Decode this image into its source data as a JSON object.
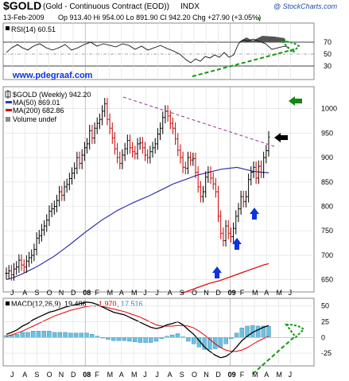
{
  "header": {
    "symbol": "$GOLD",
    "name": "(Gold - Continuous Contract (EOD))",
    "exchange": "INDX",
    "copyright": "@ StockCharts.com",
    "date": "13-Feb-2009",
    "quote": "Op 913.40  Hi 954.00  Lo 891.90  Cl 942.20  Chg +27.90 (+3.05%)",
    "change_arrow": "▲"
  },
  "watermark": "www.pdegraaf.com",
  "rsi_panel": {
    "label": "RSI(14) 60.51",
    "ticks": [
      "70",
      "50",
      "30"
    ]
  },
  "price_panel": {
    "legend_title": "$GOLD (Weekly) 942.20",
    "ma50_label": "MA(50) 869.01",
    "ma200_label": "MA(200) 682.86",
    "volume_label": "Volume undef",
    "ticks": [
      "1000",
      "950",
      "900",
      "850",
      "800",
      "750",
      "700",
      "650"
    ],
    "colors": {
      "ma50": "#3333aa",
      "ma200": "#e00000",
      "price_bar": "#000000",
      "trendline": "#993399",
      "arrow_green": "#118811",
      "arrow_blue": "#1133dd",
      "arrow_black": "#000000"
    }
  },
  "macd_panel": {
    "label": "MACD(12,26,9)",
    "macd_value": "19.486",
    "signal_value": "1.970",
    "hist_value": "17.516",
    "ticks": [
      "50",
      "25",
      "0",
      "-25"
    ]
  },
  "x_axis": {
    "labels": [
      "J",
      "A",
      "S",
      "O",
      "N",
      "D",
      "08",
      "F",
      "M",
      "A",
      "M",
      "J",
      "J",
      "A",
      "S",
      "O",
      "N",
      "D",
      "09",
      "F",
      "M",
      "A",
      "M",
      "J"
    ]
  },
  "chart_data": {
    "type": "line",
    "title": "$GOLD (Gold - Continuous Contract (EOD)) INDX",
    "ylim": [
      625,
      1045
    ],
    "series": [
      {
        "name": "$GOLD (Weekly)",
        "values": [
          663,
          668,
          660,
          672,
          676,
          690,
          680,
          676,
          688,
          695,
          700,
          712,
          735,
          740,
          752,
          760,
          772,
          790,
          795,
          800,
          812,
          830,
          823,
          840,
          845,
          857,
          868,
          878,
          900,
          888,
          905,
          920,
          928,
          955,
          940,
          960,
          970,
          978,
          995,
          1010,
          978,
          960,
          940,
          918,
          900,
          888,
          905,
          918,
          935,
          920,
          912,
          908,
          928,
          930,
          920,
          905,
          900,
          912,
          920,
          928,
          948,
          960,
          982,
          995,
          985,
          970,
          960,
          938,
          915,
          900,
          880,
          878,
          900,
          895,
          898,
          870,
          840,
          820,
          830,
          860,
          870,
          858,
          846,
          830,
          780,
          745,
          730,
          760,
          745,
          738,
          755,
          780,
          795,
          820,
          810,
          820,
          855,
          870,
          880,
          858,
          882,
          870,
          900,
          914,
          942
        ]
      },
      {
        "name": "MA(50)",
        "values": [
          650,
          655,
          662,
          670,
          678,
          688,
          698,
          710,
          722,
          735,
          748,
          760,
          772,
          782,
          792,
          800,
          808,
          815,
          822,
          830,
          838,
          846,
          852,
          858,
          864,
          868,
          872,
          876,
          878,
          880,
          876,
          872,
          870,
          869
        ]
      },
      {
        "name": "MA(200)",
        "values": [
          622,
          626,
          630,
          634,
          638,
          642,
          645,
          648,
          652,
          656,
          660,
          664,
          668,
          672,
          676,
          680,
          683
        ]
      },
      {
        "name": "MACD(12,26,9)",
        "values": [
          5,
          8,
          12,
          18,
          22,
          28,
          32,
          36,
          40,
          42,
          45,
          48,
          50,
          52,
          54,
          56,
          55,
          52,
          48,
          44,
          40,
          38,
          36,
          32,
          28,
          24,
          20,
          16,
          14,
          16,
          20,
          22,
          25,
          20,
          12,
          5,
          -5,
          -15,
          -22,
          -28,
          -32,
          -30,
          -24,
          -15,
          -5,
          2,
          8,
          12,
          16,
          19
        ]
      },
      {
        "name": "Signal",
        "values": [
          2,
          4,
          7,
          10,
          14,
          18,
          22,
          26,
          30,
          34,
          37,
          40,
          43,
          45,
          47,
          49,
          50,
          50,
          49,
          47,
          45,
          43,
          41,
          38,
          35,
          32,
          28,
          24,
          20,
          18,
          18,
          18,
          19,
          19,
          18,
          15,
          10,
          4,
          -3,
          -10,
          -16,
          -20,
          -22,
          -22,
          -20,
          -16,
          -11,
          -6,
          -2,
          2
        ]
      },
      {
        "name": "Histogram",
        "values": [
          3,
          4,
          5,
          8,
          8,
          10,
          10,
          10,
          10,
          8,
          8,
          8,
          7,
          7,
          7,
          7,
          5,
          2,
          -1,
          -3,
          -5,
          -5,
          -5,
          -6,
          -7,
          -8,
          -8,
          -8,
          -6,
          -2,
          2,
          4,
          6,
          1,
          -6,
          -10,
          -15,
          -19,
          -19,
          -18,
          -16,
          -10,
          -2,
          7,
          15,
          18,
          19,
          18,
          18,
          17.5
        ]
      }
    ],
    "xlabel": "",
    "ylabel": ""
  }
}
